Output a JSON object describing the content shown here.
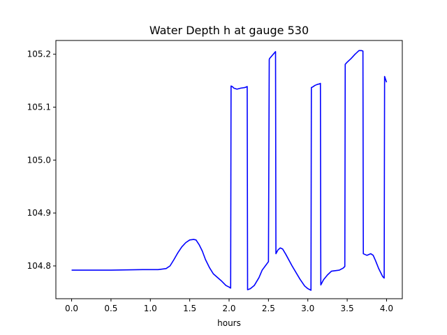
{
  "chart_data": {
    "type": "line",
    "title": "Water Depth h at gauge 530",
    "xlabel": "hours",
    "ylabel": "",
    "xlim": [
      -0.2,
      4.2
    ],
    "ylim": [
      104.738,
      105.226
    ],
    "xticks": [
      0.0,
      0.5,
      1.0,
      1.5,
      2.0,
      2.5,
      3.0,
      3.5,
      4.0
    ],
    "xtick_labels": [
      "0.0",
      "0.5",
      "1.0",
      "1.5",
      "2.0",
      "2.5",
      "3.0",
      "3.5",
      "4.0"
    ],
    "yticks": [
      104.8,
      104.9,
      105.0,
      105.1,
      105.2
    ],
    "ytick_labels": [
      "104.8",
      "104.9",
      "105.0",
      "105.1",
      "105.2"
    ],
    "grid": false,
    "series": [
      {
        "color": "#0000ff",
        "x": [
          0.0,
          0.5,
          0.9,
          1.0,
          1.1,
          1.2,
          1.25,
          1.3,
          1.35,
          1.4,
          1.45,
          1.5,
          1.55,
          1.58,
          1.62,
          1.66,
          1.7,
          1.75,
          1.8,
          1.9,
          1.96,
          2.0,
          2.02,
          2.025,
          2.04,
          2.06,
          2.08,
          2.1,
          2.15,
          2.2,
          2.23,
          2.235,
          2.27,
          2.32,
          2.38,
          2.42,
          2.5,
          2.51,
          2.515,
          2.59,
          2.595,
          2.62,
          2.65,
          2.68,
          2.72,
          2.8,
          2.9,
          2.96,
          3.0,
          3.04,
          3.045,
          3.06,
          3.09,
          3.12,
          3.15,
          3.16,
          3.165,
          3.2,
          3.25,
          3.3,
          3.35,
          3.4,
          3.45,
          3.47,
          3.475,
          3.5,
          3.55,
          3.6,
          3.65,
          3.68,
          3.7,
          3.705,
          3.75,
          3.8,
          3.83,
          3.86,
          3.9,
          3.95,
          3.97,
          3.975,
          4.0
        ],
        "y": [
          104.792,
          104.792,
          104.793,
          104.793,
          104.793,
          104.795,
          104.8,
          104.812,
          104.825,
          104.836,
          104.844,
          104.849,
          104.85,
          104.849,
          104.84,
          104.828,
          104.812,
          104.797,
          104.785,
          104.772,
          104.763,
          104.76,
          104.758,
          105.14,
          105.139,
          105.136,
          105.135,
          105.134,
          105.136,
          105.137,
          105.139,
          104.755,
          104.757,
          104.763,
          104.778,
          104.792,
          104.808,
          105.19,
          105.192,
          105.205,
          104.823,
          104.83,
          104.834,
          104.832,
          104.822,
          104.8,
          104.775,
          104.762,
          104.757,
          104.754,
          105.137,
          105.138,
          105.141,
          105.143,
          105.144,
          105.145,
          104.764,
          104.774,
          104.783,
          104.79,
          104.791,
          104.792,
          104.796,
          104.799,
          105.181,
          105.185,
          105.192,
          105.2,
          105.207,
          105.207,
          105.206,
          104.823,
          104.82,
          104.823,
          104.82,
          104.81,
          104.795,
          104.78,
          104.777,
          105.158,
          105.147
        ]
      }
    ]
  }
}
